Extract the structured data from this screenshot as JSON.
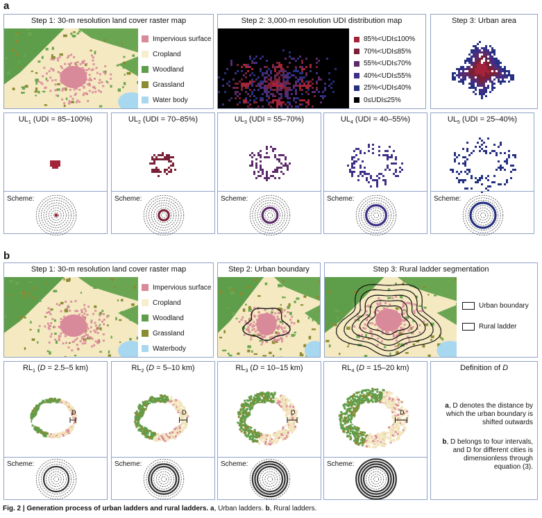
{
  "panel_a_label": "a",
  "panel_b_label": "b",
  "a": {
    "step1_title": "Step 1: 30-m resolution land cover raster map",
    "step2_title": "Step 2: 3,000-m resolution UDI distribution map",
    "step3_title": "Step 3: Urban area",
    "landcover_legend": [
      {
        "label": "Impervious surface",
        "color": "#d98a9a"
      },
      {
        "label": "Cropland",
        "color": "#f7eecb"
      },
      {
        "label": "Woodland",
        "color": "#5e9e4a"
      },
      {
        "label": "Grassland",
        "color": "#8b8b32"
      },
      {
        "label": "Water body",
        "color": "#a8d8f0"
      }
    ],
    "udi_legend": [
      {
        "label": "85%<UDI≤100%",
        "color": "#a3243a"
      },
      {
        "label": "70%<UDI≤85%",
        "color": "#7a2036"
      },
      {
        "label": "55%<UDI≤70%",
        "color": "#5c2a6a"
      },
      {
        "label": "40%<UDI≤55%",
        "color": "#3e2f86"
      },
      {
        "label": "25%<UDI≤40%",
        "color": "#24307f"
      },
      {
        "label": "0≤UDI≤25%",
        "color": "#000000"
      }
    ],
    "ul": [
      {
        "prefix": "UL",
        "sub": "1",
        "range": " (UDI = 85–100%)",
        "color": "#a3243a"
      },
      {
        "prefix": "UL",
        "sub": "2",
        "range": " (UDI = 70–85%)",
        "color": "#7a2036"
      },
      {
        "prefix": "UL",
        "sub": "3",
        "range": " (UDI = 55–70%)",
        "color": "#5c2a6a"
      },
      {
        "prefix": "UL",
        "sub": "4",
        "range": " (UDI = 40–55%)",
        "color": "#3e2f86"
      },
      {
        "prefix": "UL",
        "sub": "5",
        "range": " (UDI = 25–40%)",
        "color": "#24307f"
      }
    ],
    "scheme_label": "Scheme:"
  },
  "b": {
    "step1_title": "Step 1: 30-m resolution land cover raster map",
    "step2_title": "Step 2: Urban boundary",
    "step3_title": "Step 3: Rural ladder segmentation",
    "landcover_legend": [
      {
        "label": "Impervious surface",
        "color": "#d98a9a"
      },
      {
        "label": "Cropland",
        "color": "#f7eecb"
      },
      {
        "label": "Woodland",
        "color": "#5e9e4a"
      },
      {
        "label": "Grassland",
        "color": "#8b8b32"
      },
      {
        "label": "Waterbody",
        "color": "#a8d8f0"
      }
    ],
    "boundary_legend": [
      "Urban boundary",
      "Rural ladder"
    ],
    "rl": [
      {
        "prefix": "RL",
        "sub": "1",
        "d": "D",
        "range": " = 2.5–5 km)"
      },
      {
        "prefix": "RL",
        "sub": "2",
        "d": "D",
        "range": " = 5–10 km)"
      },
      {
        "prefix": "RL",
        "sub": "3",
        "d": "D",
        "range": " = 10–15 km)"
      },
      {
        "prefix": "RL",
        "sub": "4",
        "d": "D",
        "range": " = 15–20 km)"
      }
    ],
    "d_marker": "D",
    "scheme_label": "Scheme:",
    "definition_title_prefix": "Definition of ",
    "definition_title_var": "D",
    "definition_a_tag": "a",
    "definition_a_text": ", D denotes the distance by which the urban boundary is shifted outwards",
    "definition_b_tag": "b",
    "definition_b_text": ", D belongs to four intervals, and D for different cities is dimensionless through equation (3)."
  },
  "caption": {
    "bold": "Fig. 2 | Generation process of urban ladders and rural ladders.",
    "a_tag": "a",
    "a_text": ", Urban ladders. ",
    "b_tag": "b",
    "b_text": ", Rural ladders."
  }
}
